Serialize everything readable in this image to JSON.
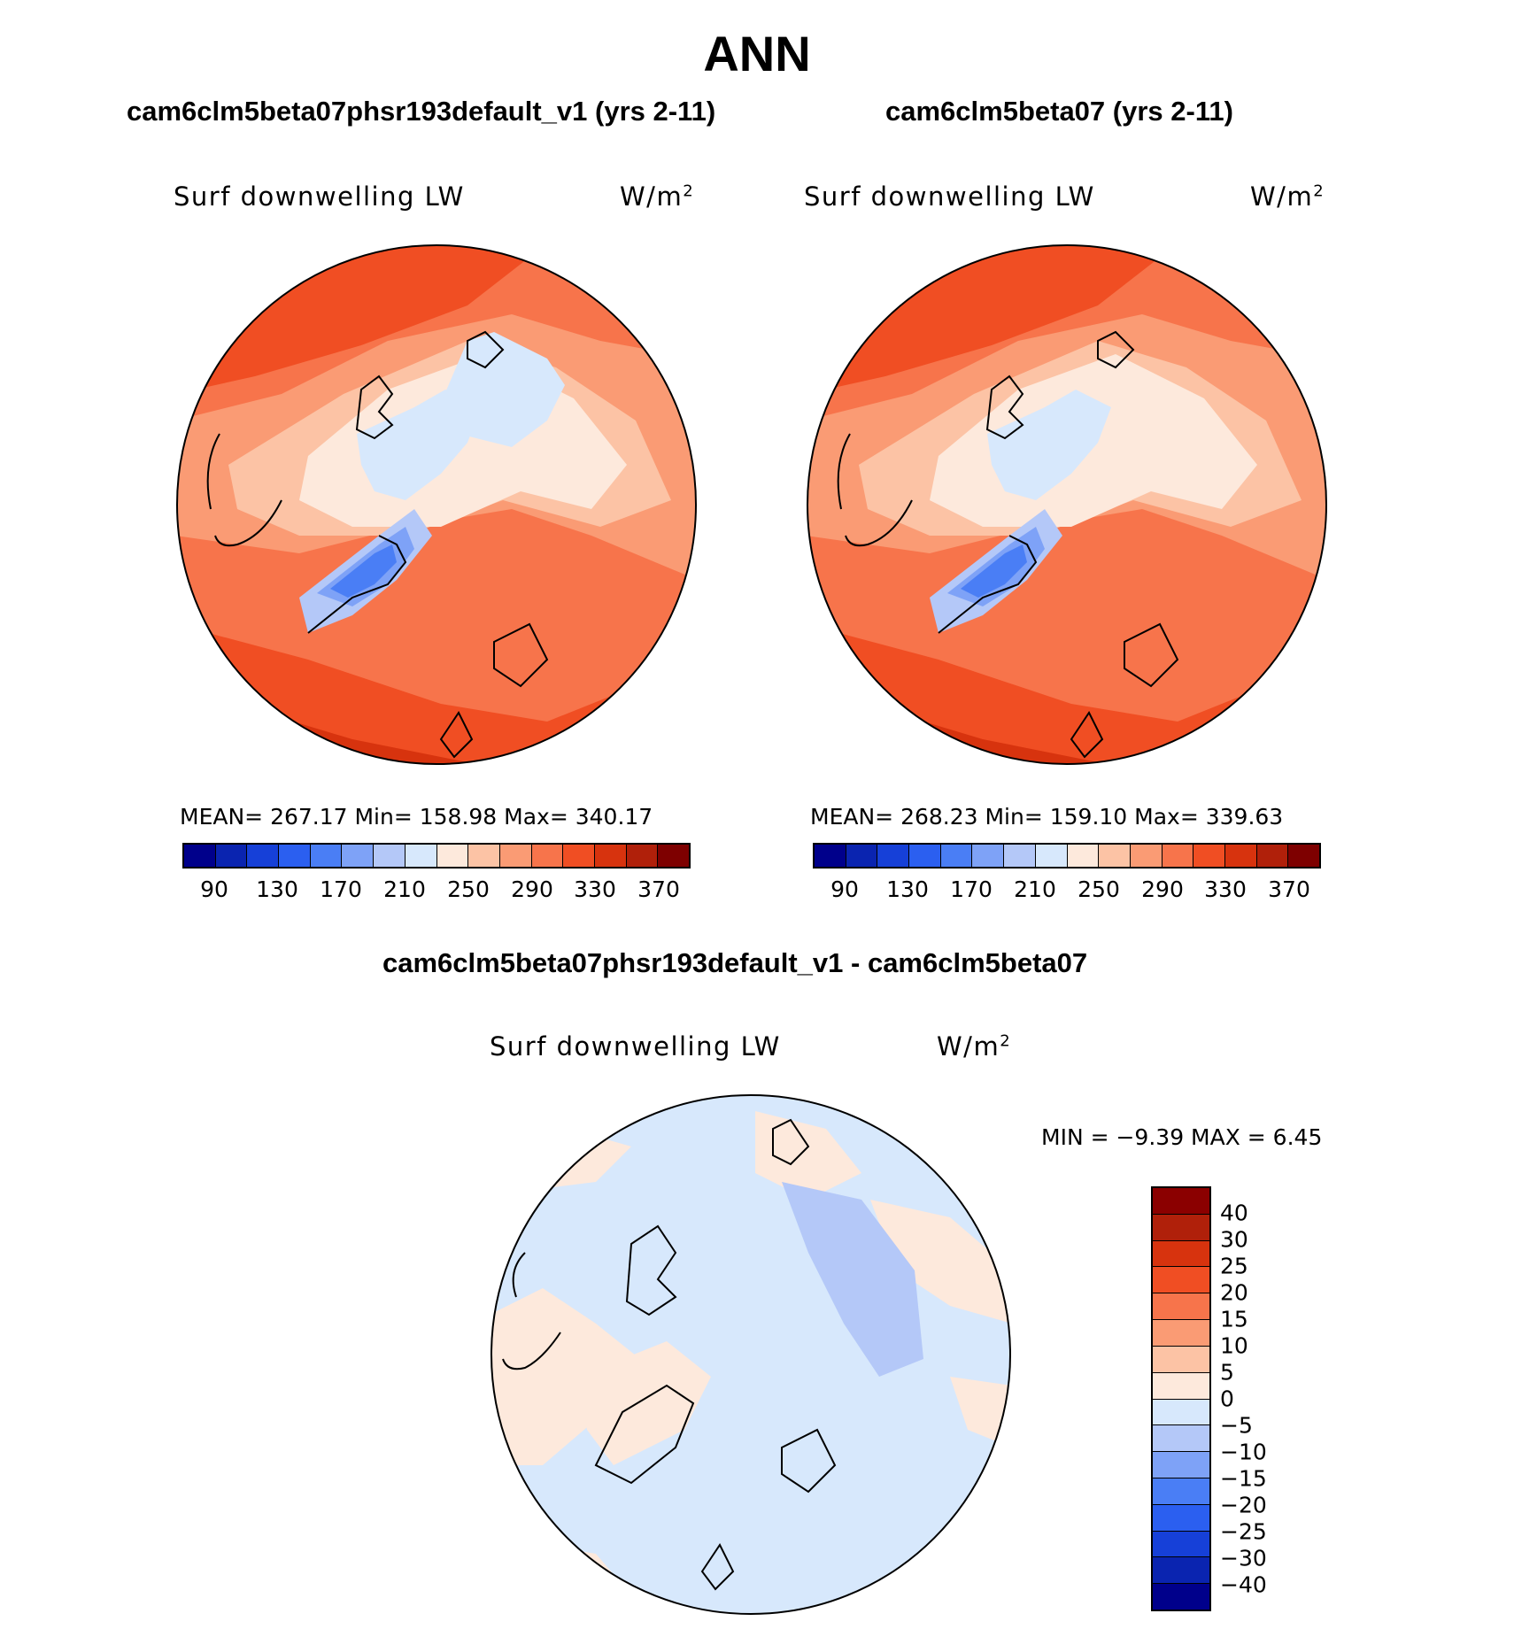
{
  "page_title": "ANN",
  "panels": [
    {
      "case_title": "cam6clm5beta07phsr193default_v1 (yrs 2-11)",
      "var_label": "Surf downwelling LW",
      "units_base": "W/m",
      "units_exp": "2",
      "stats": "MEAN= 267.17   Min= 158.98   Max= 340.17",
      "map_name": "Arctic polar stereographic map of surface downwelling LW, case 1"
    },
    {
      "case_title": "cam6clm5beta07 (yrs 2-11)",
      "var_label": "Surf downwelling LW",
      "units_base": "W/m",
      "units_exp": "2",
      "stats": "MEAN= 268.23   Min= 159.10   Max= 339.63",
      "map_name": "Arctic polar stereographic map of surface downwelling LW, case 2"
    }
  ],
  "diff": {
    "title": "cam6clm5beta07phsr193default_v1 - cam6clm5beta07",
    "var_label": "Surf downwelling LW",
    "units_base": "W/m",
    "units_exp": "2",
    "minmax": "MIN =   −9.39 MAX =    6.45",
    "map_name": "Arctic polar stereographic map of difference"
  },
  "colorbar_main": {
    "colors": [
      "#00008b",
      "#0a24b0",
      "#1640d8",
      "#2b5ff0",
      "#4a7ef5",
      "#7ea2f7",
      "#b4c8f8",
      "#d7e8fc",
      "#fde9dc",
      "#fcc3a5",
      "#fa9b74",
      "#f7744b",
      "#f04e23",
      "#d7330e",
      "#b0200a",
      "#7e0000"
    ],
    "labels": [
      "90",
      "130",
      "170",
      "210",
      "250",
      "290",
      "330",
      "370"
    ]
  },
  "colorbar_diff": {
    "colors": [
      "#8b0000",
      "#b0200a",
      "#d7330e",
      "#f04e23",
      "#f7744b",
      "#fa9b74",
      "#fcc3a5",
      "#fde9dc",
      "#d7e8fc",
      "#b4c8f8",
      "#7ea2f7",
      "#4a7ef5",
      "#2b5ff0",
      "#1640d8",
      "#0a24b0",
      "#00008b"
    ],
    "labels": [
      "40",
      "30",
      "25",
      "20",
      "15",
      "10",
      "5",
      "0",
      "−5",
      "−10",
      "−15",
      "−20",
      "−25",
      "−30",
      "−40"
    ]
  }
}
